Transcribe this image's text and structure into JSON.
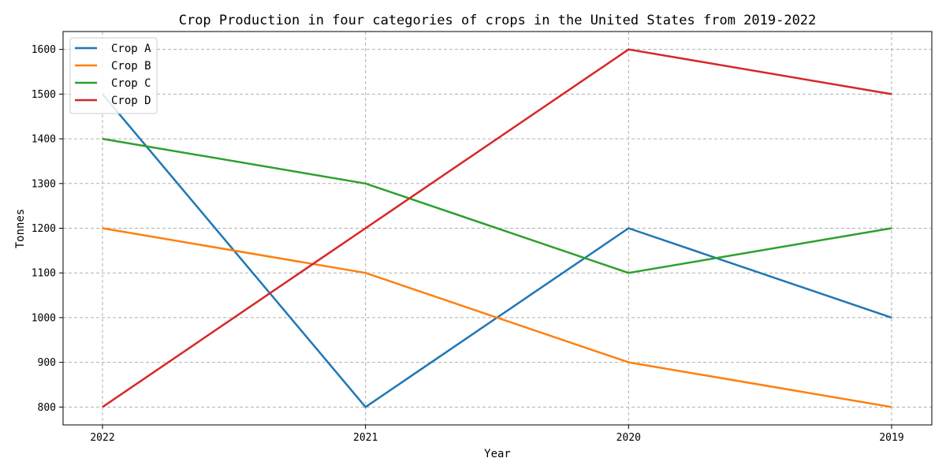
{
  "chart_data": {
    "type": "line",
    "title": "Crop Production in four categories of crops in the United States from 2019-2022",
    "xlabel": "Year",
    "ylabel": "Tonnes",
    "categories": [
      "2022",
      "2021",
      "2020",
      "2019"
    ],
    "yticks": [
      800,
      900,
      1000,
      1100,
      1200,
      1300,
      1400,
      1500,
      1600
    ],
    "ylim": [
      760,
      1640
    ],
    "grid": true,
    "legend_position": "top-left",
    "series": [
      {
        "name": "Crop A",
        "color": "#1f77b4",
        "values": [
          1500,
          800,
          1200,
          1000
        ]
      },
      {
        "name": "Crop B",
        "color": "#ff7f0e",
        "values": [
          1200,
          1100,
          900,
          800
        ]
      },
      {
        "name": "Crop C",
        "color": "#2ca02c",
        "values": [
          1400,
          1300,
          1100,
          1200
        ]
      },
      {
        "name": "Crop D",
        "color": "#d62728",
        "values": [
          800,
          1200,
          1600,
          1500
        ]
      }
    ]
  }
}
